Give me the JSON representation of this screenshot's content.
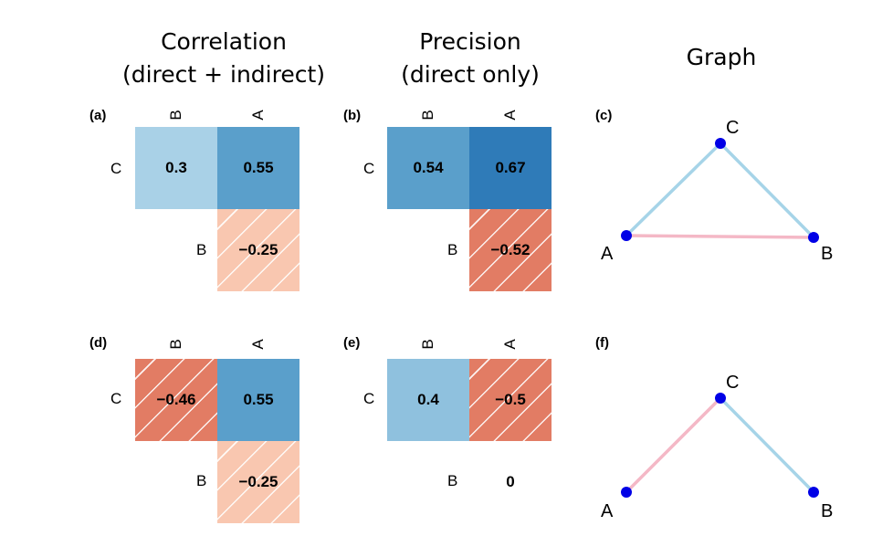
{
  "headers": {
    "correlation": [
      "Correlation",
      "(direct + indirect)"
    ],
    "precision": [
      "Precision",
      "(direct only)"
    ],
    "graph": "Graph"
  },
  "colors": {
    "edge_positive": "#a6d4e8",
    "edge_negative": "#f4b8c6",
    "node": "#0000e6",
    "light_blue": "#a9d1e7",
    "mid_blue": "#5a9fcb",
    "dark_blue": "#2f7bb8",
    "blue_04": "#8fc1de",
    "light_salmon": "#f9c7b0",
    "salmon": "#e27c64",
    "white": "#ffffff"
  },
  "panels": {
    "a": {
      "label": "(a)",
      "col_labels": [
        "B",
        "A"
      ],
      "row_labels": [
        "C",
        "B"
      ],
      "cells": [
        {
          "value": "0.3",
          "color": "#a9d1e7",
          "hatch": false
        },
        {
          "value": "0.55",
          "color": "#5a9fcb",
          "hatch": false
        },
        {
          "value": "−0.25",
          "color": "#f9c7b0",
          "hatch": true
        }
      ]
    },
    "b": {
      "label": "(b)",
      "col_labels": [
        "B",
        "A"
      ],
      "row_labels": [
        "C",
        "B"
      ],
      "cells": [
        {
          "value": "0.54",
          "color": "#5a9fcb",
          "hatch": false
        },
        {
          "value": "0.67",
          "color": "#2f7bb8",
          "hatch": false
        },
        {
          "value": "−0.52",
          "color": "#e27c64",
          "hatch": true
        }
      ]
    },
    "c": {
      "label": "(c)",
      "nodes": [
        "A",
        "B",
        "C"
      ],
      "edges": [
        {
          "from": "A",
          "to": "C",
          "sign": "positive"
        },
        {
          "from": "C",
          "to": "B",
          "sign": "positive"
        },
        {
          "from": "A",
          "to": "B",
          "sign": "negative"
        }
      ]
    },
    "d": {
      "label": "(d)",
      "col_labels": [
        "B",
        "A"
      ],
      "row_labels": [
        "C",
        "B"
      ],
      "cells": [
        {
          "value": "−0.46",
          "color": "#e27c64",
          "hatch": true
        },
        {
          "value": "0.55",
          "color": "#5a9fcb",
          "hatch": false
        },
        {
          "value": "−0.25",
          "color": "#f9c7b0",
          "hatch": true
        }
      ]
    },
    "e": {
      "label": "(e)",
      "col_labels": [
        "B",
        "A"
      ],
      "row_labels": [
        "C",
        "B"
      ],
      "cells": [
        {
          "value": "0.4",
          "color": "#8fc1de",
          "hatch": false
        },
        {
          "value": "−0.5",
          "color": "#e27c64",
          "hatch": true
        },
        {
          "value": "0",
          "color": "#ffffff",
          "hatch": false
        }
      ]
    },
    "f": {
      "label": "(f)",
      "nodes": [
        "A",
        "B",
        "C"
      ],
      "edges": [
        {
          "from": "A",
          "to": "C",
          "sign": "negative"
        },
        {
          "from": "C",
          "to": "B",
          "sign": "positive"
        }
      ]
    }
  }
}
